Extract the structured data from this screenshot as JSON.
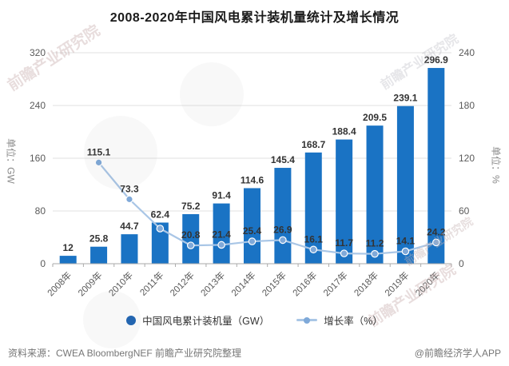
{
  "title": "2008-2020年中国风电累计装机量统计及增长情况",
  "left_axis": {
    "name": "单位：GW",
    "ticks": [
      0,
      80,
      160,
      240,
      320
    ],
    "max": 320
  },
  "right_axis": {
    "name": "单位：%",
    "ticks": [
      0,
      60,
      120,
      180,
      240
    ],
    "max": 240
  },
  "legend": {
    "bar_label": "中国风电累计装机量（GW）",
    "line_label": "增长率（%）"
  },
  "footer": {
    "source": "资料来源：CWEA BloombergNEF 前瞻产业研究院整理",
    "credit": "@前瞻经济学人APP"
  },
  "watermark": {
    "text": "前瞻产业研究院"
  },
  "colors": {
    "bar": "#1a73c4",
    "line": "#a9c6e6",
    "marker": "#7fa9d9",
    "legend_dot": "#2365b0",
    "grid": "#e2e2e2",
    "axis": "#aaaaaa",
    "data_label": "#333333"
  },
  "chart_data": {
    "type": "bar",
    "subtype": "bar-line-combo",
    "title": "2008-2020年中国风电累计装机量统计及增长情况",
    "categories": [
      "2008年",
      "2009年",
      "2010年",
      "2011年",
      "2012年",
      "2013年",
      "2014年",
      "2015年",
      "2016年",
      "2017年",
      "2018年",
      "2019年",
      "2020年"
    ],
    "grid": true,
    "legend_position": "bottom",
    "left_ylim": [
      0,
      320
    ],
    "right_ylim": [
      0,
      240
    ],
    "series": [
      {
        "name": "中国风电累计装机量（GW）",
        "type": "bar",
        "axis": "left",
        "values": [
          12,
          25.8,
          44.7,
          62.4,
          75.2,
          91.4,
          114.6,
          145.4,
          168.7,
          188.4,
          209.5,
          239.1,
          296.9
        ],
        "labels": [
          "12",
          "25.8",
          "44.7",
          "62.4",
          "75.2",
          "91.4",
          "114.6",
          "145.4",
          "168.7",
          "188.4",
          "209.5",
          "239.1",
          "296.9"
        ]
      },
      {
        "name": "增长率（%）",
        "type": "line",
        "axis": "right",
        "values": [
          null,
          115.1,
          73.3,
          40,
          20.8,
          21.4,
          25.4,
          26.9,
          16.1,
          11.7,
          11.2,
          14.1,
          24.2
        ],
        "labels": [
          "",
          "115.1",
          "73.3",
          "",
          "20.8",
          "21.4",
          "25.4",
          "26.9",
          "16.1",
          "11.7",
          "11.2",
          "14.1",
          "24.2"
        ],
        "note_2011": "marker visible but unlabeled; value estimated from axis"
      }
    ]
  }
}
